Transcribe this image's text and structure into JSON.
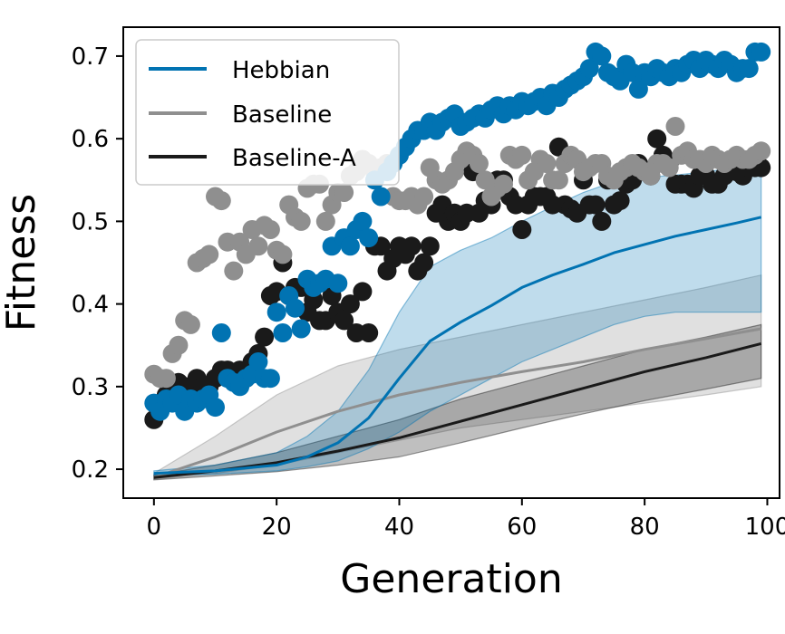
{
  "chart_data": {
    "type": "line",
    "title": "",
    "xlabel": "Generation",
    "ylabel": "Fitness",
    "xlim": [
      -5,
      102
    ],
    "ylim": [
      0.165,
      0.735
    ],
    "xticks": [
      0,
      20,
      40,
      60,
      80,
      100
    ],
    "yticks": [
      0.2,
      0.3,
      0.4,
      0.5,
      0.6,
      0.7
    ],
    "xtick_labels": [
      "0",
      "20",
      "40",
      "60",
      "80",
      "100"
    ],
    "ytick_labels": [
      "0.2",
      "0.3",
      "0.4",
      "0.5",
      "0.6",
      "0.7"
    ],
    "legend_position": "top-left",
    "series": [
      {
        "name": "Hebbian",
        "color": "#0173b2",
        "mean": {
          "x": [
            0,
            10,
            20,
            25,
            30,
            35,
            40,
            45,
            50,
            55,
            60,
            65,
            70,
            75,
            80,
            85,
            90,
            95,
            99
          ],
          "y": [
            0.195,
            0.198,
            0.205,
            0.215,
            0.232,
            0.262,
            0.31,
            0.355,
            0.378,
            0.398,
            0.42,
            0.435,
            0.448,
            0.462,
            0.472,
            0.482,
            0.49,
            0.498,
            0.505
          ]
        },
        "band_upper": [
          0.198,
          0.205,
          0.22,
          0.24,
          0.27,
          0.32,
          0.39,
          0.445,
          0.465,
          0.48,
          0.5,
          0.518,
          0.535,
          0.548,
          0.553,
          0.556,
          0.56,
          0.565,
          0.57
        ],
        "band_lower": [
          0.193,
          0.194,
          0.198,
          0.203,
          0.21,
          0.225,
          0.245,
          0.27,
          0.29,
          0.31,
          0.33,
          0.345,
          0.36,
          0.375,
          0.385,
          0.39,
          0.39,
          0.39,
          0.39
        ],
        "best": {
          "x": [
            0,
            1,
            2,
            3,
            4,
            5,
            6,
            7,
            8,
            9,
            10,
            11,
            12,
            13,
            14,
            15,
            16,
            17,
            18,
            19,
            20,
            21,
            22,
            23,
            24,
            25,
            26,
            27,
            28,
            29,
            30,
            31,
            32,
            33,
            34,
            35,
            36,
            37,
            38,
            39,
            40,
            41,
            42,
            43,
            44,
            45,
            46,
            47,
            48,
            49,
            50,
            51,
            52,
            53,
            54,
            55,
            56,
            57,
            58,
            59,
            60,
            61,
            62,
            63,
            64,
            65,
            66,
            67,
            68,
            69,
            70,
            71,
            72,
            73,
            74,
            75,
            76,
            77,
            78,
            79,
            80,
            81,
            82,
            83,
            84,
            85,
            86,
            87,
            88,
            89,
            90,
            91,
            92,
            93,
            94,
            95,
            96,
            97,
            98,
            99
          ],
          "y": [
            0.28,
            0.27,
            0.285,
            0.28,
            0.29,
            0.27,
            0.285,
            0.28,
            0.285,
            0.29,
            0.275,
            0.365,
            0.31,
            0.305,
            0.3,
            0.31,
            0.315,
            0.33,
            0.31,
            0.31,
            0.39,
            0.365,
            0.41,
            0.395,
            0.37,
            0.43,
            0.42,
            0.425,
            0.43,
            0.47,
            0.425,
            0.48,
            0.47,
            0.49,
            0.5,
            0.48,
            0.55,
            0.53,
            0.56,
            0.57,
            0.58,
            0.59,
            0.6,
            0.61,
            0.61,
            0.62,
            0.61,
            0.62,
            0.625,
            0.63,
            0.615,
            0.62,
            0.625,
            0.63,
            0.625,
            0.635,
            0.64,
            0.63,
            0.64,
            0.635,
            0.645,
            0.64,
            0.645,
            0.65,
            0.64,
            0.655,
            0.65,
            0.66,
            0.665,
            0.67,
            0.675,
            0.685,
            0.705,
            0.7,
            0.68,
            0.675,
            0.67,
            0.69,
            0.68,
            0.66,
            0.68,
            0.675,
            0.685,
            0.68,
            0.675,
            0.685,
            0.68,
            0.69,
            0.695,
            0.685,
            0.695,
            0.69,
            0.685,
            0.695,
            0.69,
            0.68,
            0.685,
            0.685,
            0.705,
            0.705
          ]
        }
      },
      {
        "name": "Baseline",
        "color": "#8f8f8f",
        "mean": {
          "x": [
            0,
            10,
            20,
            30,
            40,
            50,
            60,
            70,
            80,
            90,
            99
          ],
          "y": [
            0.19,
            0.215,
            0.245,
            0.27,
            0.29,
            0.305,
            0.318,
            0.33,
            0.345,
            0.358,
            0.37
          ]
        },
        "band_upper": [
          0.195,
          0.24,
          0.29,
          0.325,
          0.345,
          0.36,
          0.375,
          0.39,
          0.405,
          0.42,
          0.435
        ],
        "band_lower": [
          0.188,
          0.195,
          0.205,
          0.22,
          0.235,
          0.25,
          0.26,
          0.27,
          0.28,
          0.29,
          0.3
        ],
        "best": {
          "x": [
            0,
            1,
            2,
            3,
            4,
            5,
            6,
            7,
            8,
            9,
            10,
            11,
            12,
            13,
            14,
            15,
            16,
            17,
            18,
            19,
            20,
            21,
            22,
            23,
            24,
            25,
            26,
            27,
            28,
            29,
            30,
            31,
            32,
            33,
            34,
            35,
            36,
            37,
            38,
            39,
            40,
            41,
            42,
            43,
            44,
            45,
            46,
            47,
            48,
            49,
            50,
            51,
            52,
            53,
            54,
            55,
            56,
            57,
            58,
            59,
            60,
            61,
            62,
            63,
            64,
            65,
            66,
            67,
            68,
            69,
            70,
            71,
            72,
            73,
            74,
            75,
            76,
            77,
            78,
            79,
            80,
            81,
            82,
            83,
            84,
            85,
            86,
            87,
            88,
            89,
            90,
            91,
            92,
            93,
            94,
            95,
            96,
            97,
            98,
            99
          ],
          "y": [
            0.315,
            0.31,
            0.31,
            0.34,
            0.35,
            0.38,
            0.375,
            0.45,
            0.455,
            0.46,
            0.53,
            0.525,
            0.475,
            0.44,
            0.475,
            0.46,
            0.49,
            0.47,
            0.495,
            0.49,
            0.465,
            0.46,
            0.52,
            0.505,
            0.5,
            0.54,
            0.545,
            0.545,
            0.5,
            0.52,
            0.535,
            0.535,
            0.555,
            0.56,
            0.575,
            0.57,
            0.56,
            0.565,
            0.57,
            0.53,
            0.525,
            0.525,
            0.53,
            0.52,
            0.53,
            0.565,
            0.55,
            0.545,
            0.55,
            0.56,
            0.575,
            0.585,
            0.58,
            0.57,
            0.55,
            0.53,
            0.54,
            0.545,
            0.58,
            0.575,
            0.58,
            0.55,
            0.56,
            0.575,
            0.57,
            0.55,
            0.55,
            0.57,
            0.58,
            0.575,
            0.56,
            0.565,
            0.57,
            0.57,
            0.555,
            0.55,
            0.56,
            0.565,
            0.57,
            0.565,
            0.56,
            0.555,
            0.57,
            0.57,
            0.565,
            0.615,
            0.58,
            0.585,
            0.575,
            0.575,
            0.57,
            0.58,
            0.575,
            0.57,
            0.575,
            0.58,
            0.575,
            0.575,
            0.58,
            0.585
          ]
        }
      },
      {
        "name": "Baseline-A",
        "color": "#1a1a1a",
        "mean": {
          "x": [
            0,
            10,
            20,
            30,
            40,
            50,
            60,
            70,
            80,
            90,
            99
          ],
          "y": [
            0.19,
            0.198,
            0.208,
            0.222,
            0.238,
            0.258,
            0.278,
            0.298,
            0.318,
            0.335,
            0.352
          ]
        },
        "band_upper": [
          0.193,
          0.205,
          0.22,
          0.24,
          0.26,
          0.285,
          0.305,
          0.325,
          0.345,
          0.36,
          0.375
        ],
        "band_lower": [
          0.187,
          0.192,
          0.197,
          0.205,
          0.215,
          0.232,
          0.25,
          0.267,
          0.283,
          0.297,
          0.31
        ],
        "best": {
          "x": [
            0,
            1,
            2,
            3,
            4,
            5,
            6,
            7,
            8,
            9,
            10,
            11,
            12,
            13,
            14,
            15,
            16,
            17,
            18,
            19,
            20,
            21,
            22,
            23,
            24,
            25,
            26,
            27,
            28,
            29,
            30,
            31,
            32,
            33,
            34,
            35,
            36,
            37,
            38,
            39,
            40,
            41,
            42,
            43,
            44,
            45,
            46,
            47,
            48,
            49,
            50,
            51,
            52,
            53,
            54,
            55,
            56,
            57,
            58,
            59,
            60,
            61,
            62,
            63,
            64,
            65,
            66,
            67,
            68,
            69,
            70,
            71,
            72,
            73,
            74,
            75,
            76,
            77,
            78,
            79,
            80,
            81,
            82,
            83,
            84,
            85,
            86,
            87,
            88,
            89,
            90,
            91,
            92,
            93,
            94,
            95,
            96,
            97,
            98,
            99
          ],
          "y": [
            0.26,
            0.275,
            0.29,
            0.3,
            0.305,
            0.3,
            0.295,
            0.31,
            0.3,
            0.3,
            0.31,
            0.32,
            0.32,
            0.31,
            0.32,
            0.31,
            0.33,
            0.34,
            0.36,
            0.41,
            0.415,
            0.45,
            0.41,
            0.42,
            0.42,
            0.39,
            0.405,
            0.38,
            0.38,
            0.41,
            0.39,
            0.38,
            0.4,
            0.365,
            0.415,
            0.365,
            0.47,
            0.47,
            0.44,
            0.455,
            0.47,
            0.46,
            0.47,
            0.44,
            0.45,
            0.47,
            0.51,
            0.52,
            0.5,
            0.51,
            0.5,
            0.51,
            0.56,
            0.51,
            0.525,
            0.52,
            0.55,
            0.55,
            0.53,
            0.52,
            0.49,
            0.52,
            0.53,
            0.53,
            0.53,
            0.52,
            0.59,
            0.52,
            0.515,
            0.51,
            0.55,
            0.52,
            0.52,
            0.5,
            0.55,
            0.52,
            0.525,
            0.545,
            0.55,
            0.57,
            0.56,
            0.555,
            0.6,
            0.58,
            0.57,
            0.545,
            0.545,
            0.545,
            0.54,
            0.555,
            0.555,
            0.545,
            0.545,
            0.555,
            0.57,
            0.56,
            0.555,
            0.565,
            0.565,
            0.565
          ]
        }
      }
    ]
  }
}
